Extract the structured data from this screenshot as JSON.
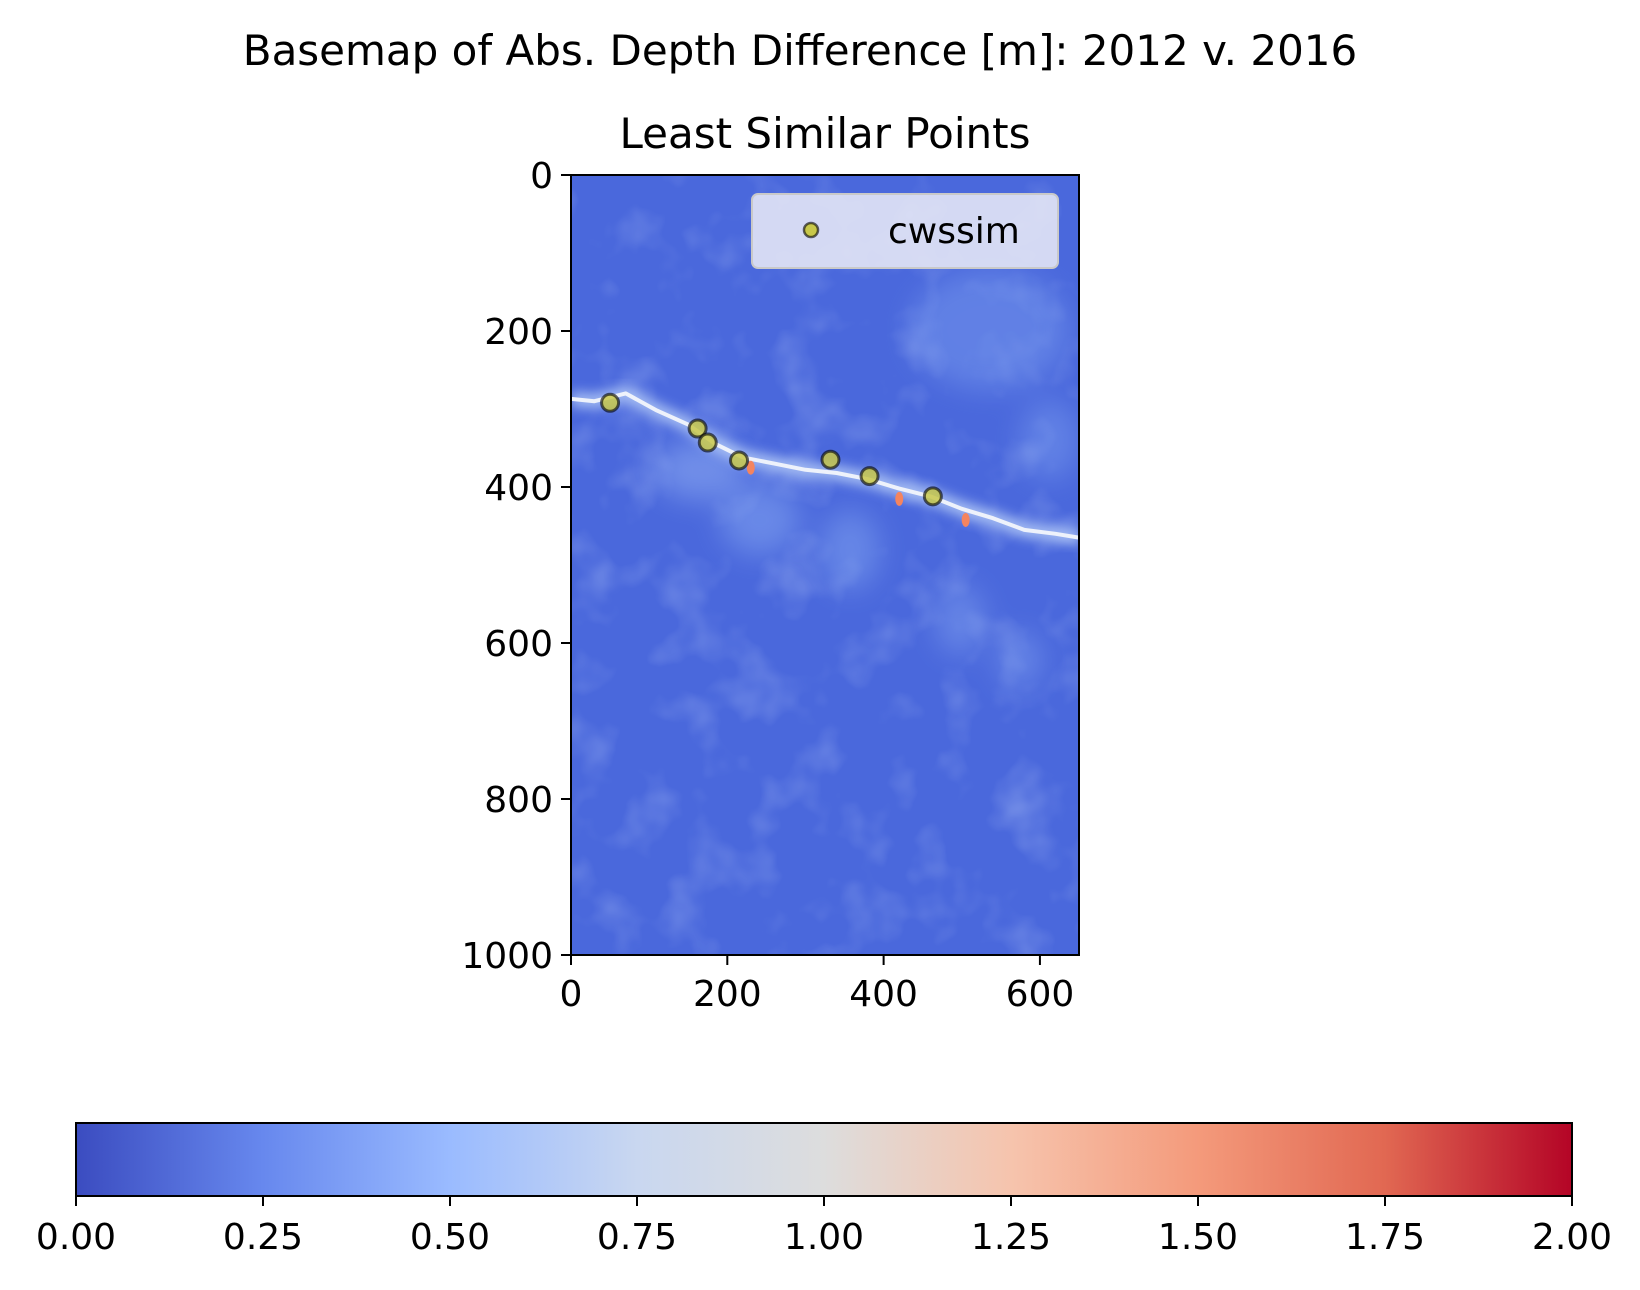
{
  "figure": {
    "suptitle": "Basemap of Abs. Depth Difference [m]: 2012 v. 2016"
  },
  "chart_data": {
    "type": "scatter",
    "title": "Least Similar Points",
    "xlabel": "",
    "ylabel": "",
    "xlim": [
      0,
      650
    ],
    "ylim": [
      1000,
      0
    ],
    "y_inverted": true,
    "xticks": [
      0,
      200,
      400,
      600
    ],
    "yticks": [
      0,
      200,
      400,
      600,
      800,
      1000
    ],
    "background": {
      "kind": "heatmap",
      "colormap": "coolwarm",
      "value_range": [
        0,
        2
      ],
      "shoreline": [
        [
          0,
          287
        ],
        [
          30,
          290
        ],
        [
          70,
          280
        ],
        [
          110,
          302
        ],
        [
          150,
          320
        ],
        [
          185,
          345
        ],
        [
          220,
          362
        ],
        [
          260,
          370
        ],
        [
          300,
          378
        ],
        [
          340,
          382
        ],
        [
          380,
          390
        ],
        [
          420,
          402
        ],
        [
          460,
          412
        ],
        [
          500,
          428
        ],
        [
          540,
          440
        ],
        [
          580,
          455
        ],
        [
          620,
          460
        ],
        [
          650,
          465
        ]
      ]
    },
    "series": [
      {
        "name": "cwssim",
        "color": "#c8c84a",
        "edgecolor": "#000000",
        "points": [
          {
            "x": 50,
            "y": 292
          },
          {
            "x": 162,
            "y": 325
          },
          {
            "x": 175,
            "y": 343
          },
          {
            "x": 215,
            "y": 366
          },
          {
            "x": 332,
            "y": 365
          },
          {
            "x": 382,
            "y": 386
          },
          {
            "x": 463,
            "y": 412
          }
        ]
      }
    ],
    "legend": {
      "placement": "top-right"
    },
    "colorbar": {
      "orientation": "horizontal",
      "range": [
        0,
        2
      ],
      "ticks": [
        "0.00",
        "0.25",
        "0.50",
        "0.75",
        "1.00",
        "1.25",
        "1.50",
        "1.75",
        "2.00"
      ],
      "colors": [
        "#3b4cc0",
        "#6788ee",
        "#9abbff",
        "#c9d7f0",
        "#dddddd",
        "#f6c4ad",
        "#f49a7b",
        "#e16852",
        "#b40426"
      ]
    }
  }
}
